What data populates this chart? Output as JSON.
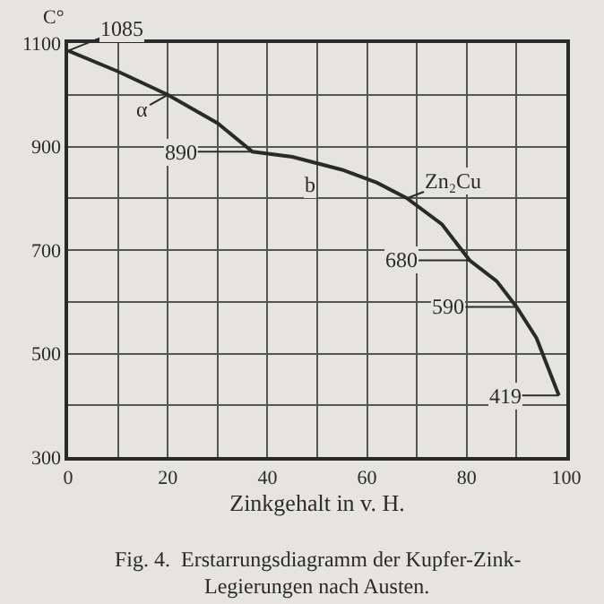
{
  "chart_data": {
    "type": "line",
    "ylabel": "C°",
    "xlabel": "Zinkgehalt in v. H.",
    "x": [
      0,
      10,
      20,
      30,
      37,
      45,
      55,
      62,
      68,
      75,
      80.6,
      86,
      90,
      94,
      98.5
    ],
    "series": [
      {
        "color": "#2a2a2a",
        "values": [
          1085,
          1045,
          1000,
          945,
          890,
          880,
          855,
          830,
          800,
          750,
          680,
          640,
          590,
          530,
          419
        ]
      }
    ],
    "xlim": [
      0,
      100
    ],
    "xticks": [
      {
        "value": 0,
        "label": "0"
      },
      {
        "value": 10,
        "label": null
      },
      {
        "value": 20,
        "label": "20"
      },
      {
        "value": 30,
        "label": null
      },
      {
        "value": 40,
        "label": "40"
      },
      {
        "value": 50,
        "label": null
      },
      {
        "value": 60,
        "label": "60"
      },
      {
        "value": 70,
        "label": null
      },
      {
        "value": 80,
        "label": "80"
      },
      {
        "value": 90,
        "label": null
      },
      {
        "value": 100,
        "label": "100"
      }
    ],
    "ylim": [
      300,
      1100
    ],
    "yticks": [
      {
        "value": 300,
        "label": "300"
      },
      {
        "value": 400,
        "label": null
      },
      {
        "value": 500,
        "label": "500"
      },
      {
        "value": 600,
        "label": null
      },
      {
        "value": 700,
        "label": "700"
      },
      {
        "value": 800,
        "label": null
      },
      {
        "value": 900,
        "label": "900"
      },
      {
        "value": 1000,
        "label": null
      },
      {
        "value": 1100,
        "label": "1100"
      }
    ],
    "grid": true,
    "marker": "none",
    "line_style": "solid",
    "annotations": [
      {
        "text": "1085",
        "x": 0,
        "y": 1085
      },
      {
        "text": "α",
        "x": 20,
        "y": 1000
      },
      {
        "text": "890",
        "x": 37,
        "y": 890
      },
      {
        "text": "b",
        "x": 50,
        "y": 870
      },
      {
        "text": "Zn₂Cu",
        "x": 68,
        "y": 800
      },
      {
        "text": "680",
        "x": 80.6,
        "y": 680
      },
      {
        "text": "590",
        "x": 90,
        "y": 590
      },
      {
        "text": "419",
        "x": 98.5,
        "y": 419
      },
      "Fig. 4.  Erstarrungsdiagramm der Kupfer-Zink-",
      "Legierungen nach Austen."
    ]
  }
}
